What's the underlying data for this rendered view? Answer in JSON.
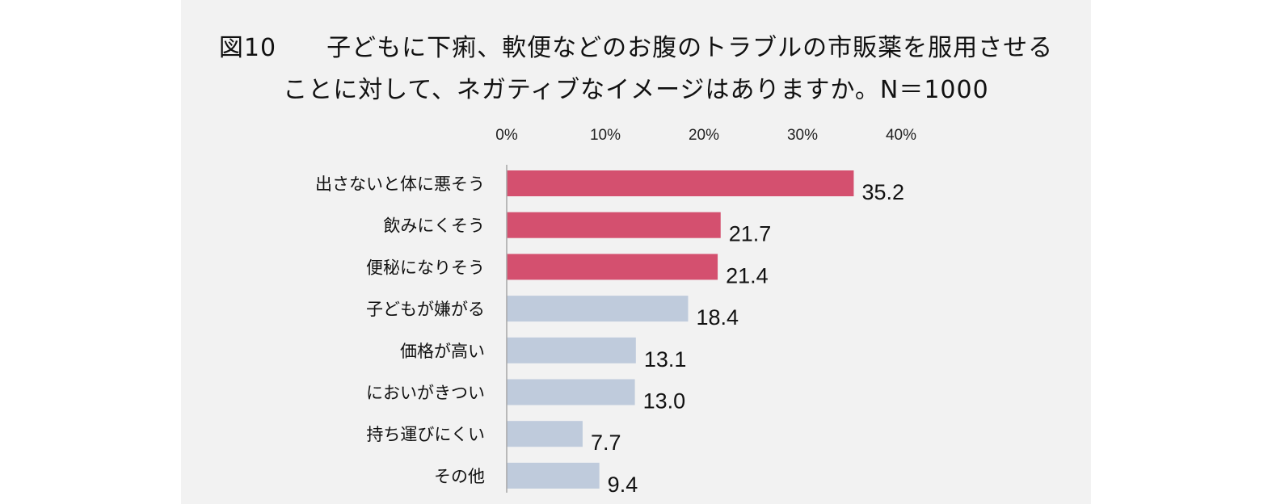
{
  "title": {
    "line1": "図10　　子どもに下痢、軟便などのお腹のトラブルの市販薬を服用させる",
    "line2": "ことに対して、ネガティブなイメージはありますか。N＝1000"
  },
  "colors": {
    "highlight": "#d4506f",
    "normal": "#bfcbdc",
    "background": "#f2f2f2",
    "axis": "#a6a6a6"
  },
  "chart_data": {
    "type": "bar",
    "orientation": "horizontal",
    "title": "図10　　子どもに下痢、軟便などのお腹のトラブルの市販薬を服用させることに対して、ネガティブなイメージはありますか。N＝1000",
    "categories": [
      "出さないと体に悪そう",
      "飲みにくそう",
      "便秘になりそう",
      "子どもが嫌がる",
      "価格が高い",
      "においがきつい",
      "持ち運びにくい",
      "その他"
    ],
    "values": [
      35.2,
      21.7,
      21.4,
      18.4,
      13.1,
      13.0,
      7.7,
      9.4
    ],
    "value_labels": [
      "35.2",
      "21.7",
      "21.4",
      "18.4",
      "13.1",
      "13.0",
      "7.7",
      "9.4"
    ],
    "highlighted": [
      true,
      true,
      true,
      false,
      false,
      false,
      false,
      false
    ],
    "xlim": [
      0,
      40
    ],
    "x_ticks": [
      0,
      10,
      20,
      30,
      40
    ],
    "x_tick_labels": [
      "0%",
      "10%",
      "20%",
      "30%",
      "40%"
    ],
    "axis_position": "top",
    "grid": false,
    "xlabel": "",
    "ylabel": ""
  }
}
